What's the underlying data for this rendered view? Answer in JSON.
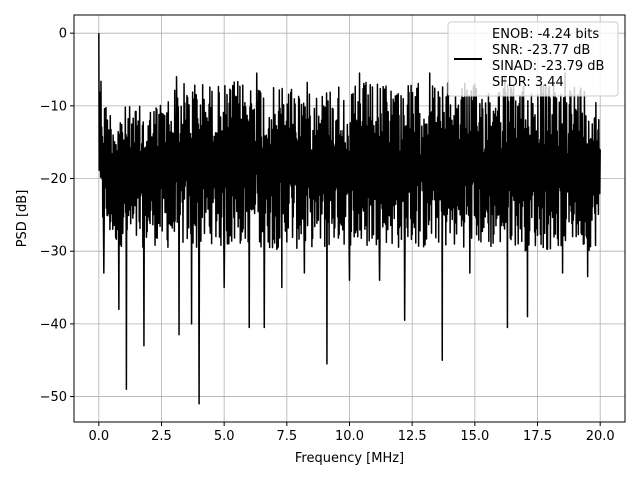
{
  "chart_data": {
    "type": "line",
    "title": "",
    "xlabel": "Frequency [MHz]",
    "ylabel": "PSD [dB]",
    "xlim": [
      -0.99,
      20.99
    ],
    "ylim": [
      -53.5,
      2.5
    ],
    "xticks": [
      0,
      2.5,
      5,
      7.5,
      10,
      12.5,
      15,
      17.5,
      20
    ],
    "xtick_labels": [
      "0.0",
      "2.5",
      "5.0",
      "7.5",
      "10.0",
      "12.5",
      "15.0",
      "17.5",
      "20.0"
    ],
    "yticks": [
      0,
      -10,
      -20,
      -30,
      -40,
      -50
    ],
    "ytick_labels": [
      "0",
      "−10",
      "−20",
      "−30",
      "−40",
      "−50"
    ],
    "grid": true,
    "legend_position": "top-right",
    "legend_entries": [
      "ENOB: -4.24 bits",
      "SNR: -23.77 dB",
      "SINAD: -23.79 dB",
      "SFDR: 3.44"
    ],
    "series": [
      {
        "color": "#000000",
        "envelope": {
          "x": [
            0.0,
            0.05,
            0.15,
            0.3,
            0.6,
            1.0,
            1.5,
            2.0,
            2.5,
            3.0,
            3.5,
            4.0,
            4.5,
            5.0,
            5.5,
            6.0,
            6.5,
            7.0,
            7.5,
            8.0,
            8.5,
            9.0,
            9.5,
            10.0,
            10.5,
            11.0,
            11.5,
            12.0,
            12.5,
            13.0,
            13.5,
            14.0,
            14.5,
            15.0,
            15.5,
            16.0,
            16.5,
            17.0,
            17.5,
            18.0,
            18.5,
            19.0,
            19.5,
            20.0
          ],
          "upper": [
            0.0,
            -3.5,
            -7.5,
            -9.5,
            -10.5,
            -10.0,
            -10.0,
            -10.0,
            -9.0,
            -7.5,
            -6.5,
            -6.5,
            -7.0,
            -7.0,
            -6.5,
            -6.5,
            -6.5,
            -7.5,
            -6.5,
            -7.0,
            -6.5,
            -7.5,
            -6.5,
            -7.5,
            -6.5,
            -7.0,
            -6.5,
            -6.5,
            -7.0,
            -6.5,
            -7.0,
            -6.5,
            -6.5,
            -7.0,
            -6.5,
            -6.5,
            -7.0,
            -6.5,
            -6.5,
            -7.0,
            -7.0,
            -6.5,
            -7.0,
            -9.0
          ],
          "lower": [
            -20.0,
            -26.0,
            -28.5,
            -28.0,
            -29.0,
            -29.5,
            -30.0,
            -29.0,
            -29.5,
            -30.0,
            -29.5,
            -30.0,
            -29.0,
            -30.0,
            -29.5,
            -29.0,
            -29.5,
            -30.0,
            -29.0,
            -30.0,
            -29.5,
            -30.0,
            -29.0,
            -29.5,
            -30.0,
            -29.5,
            -29.0,
            -30.0,
            -29.5,
            -30.0,
            -29.0,
            -30.0,
            -29.5,
            -29.0,
            -30.0,
            -29.5,
            -29.0,
            -30.0,
            -29.5,
            -30.0,
            -29.5,
            -29.0,
            -30.0,
            -29.0
          ]
        },
        "dips": [
          {
            "x": 0.2,
            "y": -33.0
          },
          {
            "x": 0.8,
            "y": -38.0
          },
          {
            "x": 1.1,
            "y": -49.0
          },
          {
            "x": 1.8,
            "y": -43.0
          },
          {
            "x": 3.2,
            "y": -41.5
          },
          {
            "x": 3.7,
            "y": -40.0
          },
          {
            "x": 4.0,
            "y": -51.0
          },
          {
            "x": 5.0,
            "y": -35.0
          },
          {
            "x": 6.0,
            "y": -40.5
          },
          {
            "x": 6.6,
            "y": -40.5
          },
          {
            "x": 7.3,
            "y": -35.0
          },
          {
            "x": 8.2,
            "y": -33.0
          },
          {
            "x": 9.1,
            "y": -45.5
          },
          {
            "x": 10.0,
            "y": -34.0
          },
          {
            "x": 11.2,
            "y": -34.0
          },
          {
            "x": 12.2,
            "y": -39.5
          },
          {
            "x": 13.7,
            "y": -45.0
          },
          {
            "x": 14.8,
            "y": -33.0
          },
          {
            "x": 16.3,
            "y": -40.5
          },
          {
            "x": 17.1,
            "y": -39.0
          },
          {
            "x": 18.5,
            "y": -33.0
          },
          {
            "x": 19.5,
            "y": -33.5
          }
        ],
        "peaks": [
          {
            "x": 0.0,
            "y": 0.0
          },
          {
            "x": 3.1,
            "y": -6.0
          },
          {
            "x": 6.3,
            "y": -5.5
          },
          {
            "x": 10.4,
            "y": -5.5
          },
          {
            "x": 13.2,
            "y": -5.5
          },
          {
            "x": 16.2,
            "y": -6.0
          },
          {
            "x": 18.6,
            "y": -5.5
          }
        ]
      }
    ]
  }
}
